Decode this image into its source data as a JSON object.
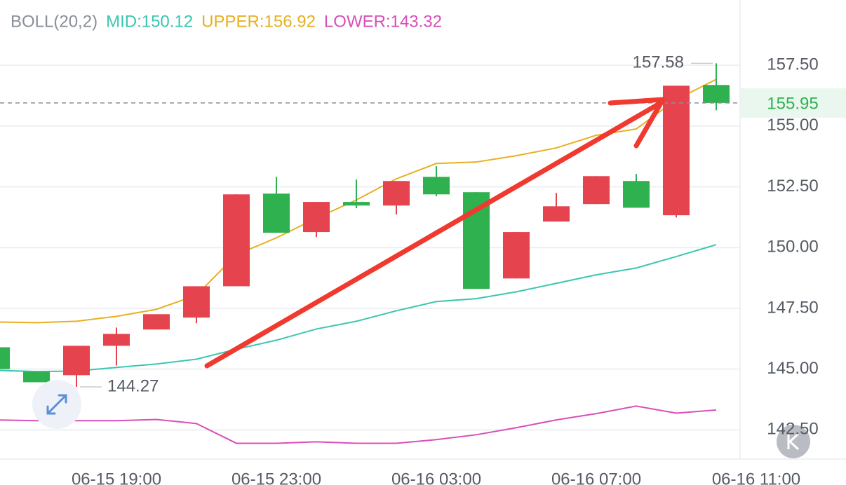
{
  "chart_data": {
    "type": "candlestick",
    "indicator": "BOLL(20,2)",
    "categories": [
      null,
      null,
      null,
      "06-15 19:00",
      null,
      null,
      null,
      "06-15 23:00",
      null,
      null,
      null,
      "06-16 03:00",
      null,
      null,
      null,
      "06-16 07:00",
      null,
      null,
      null,
      "06-16 11:00"
    ],
    "candles": {
      "open": [
        145.9,
        144.9,
        144.75,
        145.96,
        146.63,
        147.12,
        148.41,
        152.22,
        150.64,
        151.88,
        151.73,
        152.91,
        152.28,
        148.73,
        151.07,
        151.79,
        152.74,
        151.33,
        156.69,
        null
      ],
      "high": [
        145.9,
        144.9,
        145.96,
        146.71,
        147.26,
        148.41,
        152.19,
        152.91,
        151.88,
        152.8,
        152.74,
        153.35,
        152.28,
        150.64,
        152.25,
        152.94,
        153.03,
        156.66,
        157.58,
        null
      ],
      "low": [
        145.0,
        144.46,
        144.27,
        145.15,
        146.63,
        146.89,
        148.41,
        150.61,
        150.43,
        151.62,
        151.36,
        152.11,
        148.3,
        148.73,
        151.07,
        151.79,
        151.64,
        151.24,
        155.65,
        null
      ],
      "close": [
        145.0,
        144.46,
        145.96,
        146.45,
        147.26,
        148.41,
        152.19,
        150.61,
        151.88,
        151.73,
        152.74,
        152.19,
        148.3,
        150.64,
        151.7,
        152.94,
        151.64,
        156.66,
        155.95,
        null
      ],
      "up_color": "#e5444f",
      "down_color": "#2fb150"
    },
    "series": [
      {
        "name": "MID",
        "label": "MID:150.12",
        "color": "#3cc6b0",
        "values": [
          144.95,
          144.9,
          144.92,
          145.07,
          145.21,
          145.41,
          145.82,
          146.19,
          146.65,
          146.97,
          147.4,
          147.78,
          147.9,
          148.18,
          148.53,
          148.88,
          149.16,
          149.63,
          150.12,
          null
        ]
      },
      {
        "name": "UPPER",
        "label": "UPPER:156.92",
        "color": "#e8b020",
        "values": [
          146.94,
          146.91,
          146.97,
          147.17,
          147.46,
          148.04,
          149.71,
          150.4,
          151.21,
          151.96,
          152.83,
          153.46,
          153.52,
          153.78,
          154.1,
          154.62,
          154.88,
          156.09,
          156.92,
          null
        ]
      },
      {
        "name": "LOWER",
        "label": "LOWER:143.32",
        "color": "#d84fb8",
        "values": [
          142.91,
          142.88,
          142.88,
          142.88,
          142.93,
          142.76,
          141.95,
          141.95,
          142.01,
          141.95,
          141.95,
          142.1,
          142.3,
          142.59,
          142.91,
          143.17,
          143.48,
          143.19,
          143.32,
          null
        ]
      }
    ],
    "ylim": [
      141.3,
      158.6
    ],
    "yticks": [
      {
        "value": 142.5,
        "label": "142.50"
      },
      {
        "value": 145,
        "label": "145.00"
      },
      {
        "value": 147.5,
        "label": "147.50"
      },
      {
        "value": 150,
        "label": "150.00"
      },
      {
        "value": 152.5,
        "label": "152.50"
      },
      {
        "value": 155,
        "label": "155.00"
      },
      {
        "value": 157.5,
        "label": "157.50"
      }
    ],
    "grid": true
  }
}
